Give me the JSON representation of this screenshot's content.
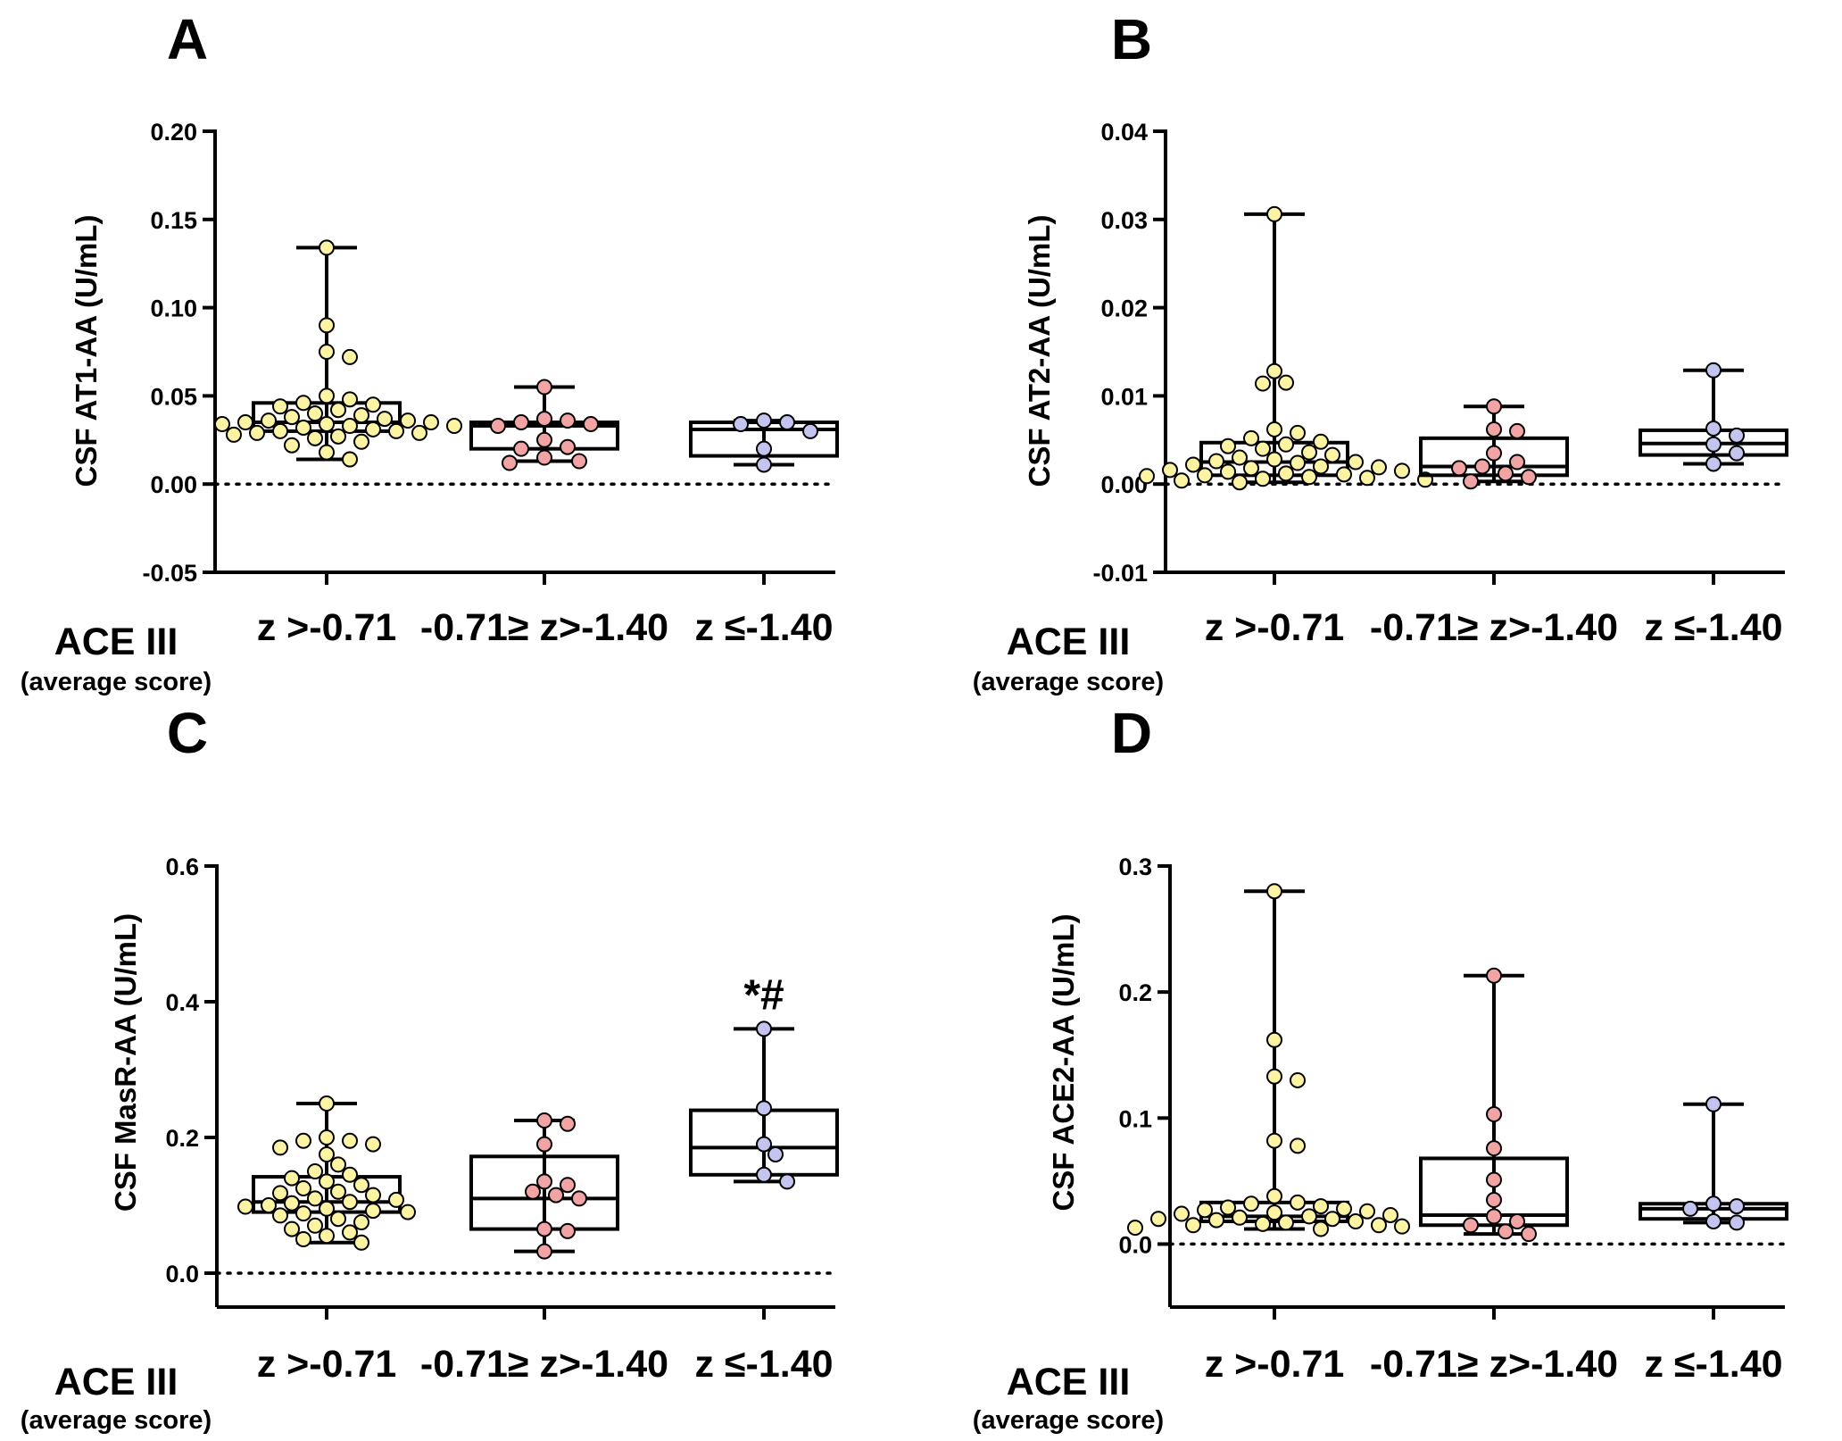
{
  "colors": {
    "group1": "#fdf4a3",
    "group2": "#f2a4a4",
    "group3": "#c4c4f0",
    "stroke": "#000000"
  },
  "chart_data": [
    {
      "type": "box",
      "panel": "A",
      "ylabel": "CSF AT1-AA (U/mL)",
      "ylim": [
        -0.05,
        0.2
      ],
      "yticks": [
        -0.05,
        0.0,
        0.05,
        0.1,
        0.15,
        0.2
      ],
      "ytick_labels": [
        "-0.05",
        "0.00",
        "0.05",
        "0.10",
        "0.15",
        "0.20"
      ],
      "reference_line": 0,
      "categories": [
        "z >-0.71",
        "-0.71≥ z>-1.40",
        "z ≤-1.40"
      ],
      "xlabel": "ACE III",
      "xlabel_sub": "(average score)",
      "series": [
        {
          "name": "z >-0.71",
          "color": "group1",
          "min": 0.014,
          "q1": 0.03,
          "median": 0.035,
          "q3": 0.046,
          "max": 0.134,
          "points": [
            0.134,
            0.09,
            0.075,
            0.072,
            0.05,
            0.048,
            0.046,
            0.045,
            0.044,
            0.042,
            0.04,
            0.039,
            0.038,
            0.037,
            0.036,
            0.036,
            0.035,
            0.035,
            0.034,
            0.034,
            0.033,
            0.033,
            0.032,
            0.031,
            0.03,
            0.03,
            0.029,
            0.029,
            0.028,
            0.027,
            0.026,
            0.024,
            0.022,
            0.018,
            0.014
          ]
        },
        {
          "name": "-0.71≥ z>-1.40",
          "color": "group2",
          "min": 0.013,
          "q1": 0.02,
          "median": 0.033,
          "q3": 0.035,
          "max": 0.055,
          "points": [
            0.055,
            0.037,
            0.036,
            0.035,
            0.034,
            0.033,
            0.025,
            0.021,
            0.02,
            0.015,
            0.013,
            0.012
          ]
        },
        {
          "name": "z ≤-1.40",
          "color": "group3",
          "min": 0.011,
          "q1": 0.016,
          "median": 0.031,
          "q3": 0.035,
          "max": 0.036,
          "points": [
            0.036,
            0.035,
            0.034,
            0.03,
            0.02,
            0.011
          ]
        }
      ]
    },
    {
      "type": "box",
      "panel": "B",
      "ylabel": "CSF AT2-AA (U/mL)",
      "ylim": [
        -0.01,
        0.04
      ],
      "yticks": [
        -0.01,
        0.0,
        0.01,
        0.02,
        0.03,
        0.04
      ],
      "ytick_labels": [
        "-0.01",
        "0.00",
        "0.01",
        "0.02",
        "0.03",
        "0.04"
      ],
      "reference_line": 0,
      "categories": [
        "z >-0.71",
        "-0.71≥ z>-1.40",
        "z ≤-1.40"
      ],
      "xlabel": "ACE III",
      "xlabel_sub": "(average score)",
      "series": [
        {
          "name": "z >-0.71",
          "color": "group1",
          "min": 0.0002,
          "q1": 0.001,
          "median": 0.0025,
          "q3": 0.0047,
          "max": 0.0306,
          "points": [
            0.0306,
            0.0128,
            0.0115,
            0.0114,
            0.0062,
            0.0058,
            0.0052,
            0.0048,
            0.0045,
            0.0043,
            0.004,
            0.0036,
            0.0033,
            0.003,
            0.0028,
            0.0026,
            0.0025,
            0.0024,
            0.0022,
            0.002,
            0.0019,
            0.0018,
            0.0016,
            0.0015,
            0.0014,
            0.0012,
            0.0011,
            0.001,
            0.0009,
            0.0008,
            0.0007,
            0.0006,
            0.0005,
            0.0004,
            0.0002
          ]
        },
        {
          "name": "-0.71≥ z>-1.40",
          "color": "group2",
          "min": 0.0003,
          "q1": 0.001,
          "median": 0.002,
          "q3": 0.0052,
          "max": 0.0088,
          "points": [
            0.0088,
            0.0062,
            0.006,
            0.0035,
            0.0025,
            0.002,
            0.0018,
            0.0012,
            0.0008,
            0.0003
          ]
        },
        {
          "name": "z ≤-1.40",
          "color": "group3",
          "min": 0.0023,
          "q1": 0.0033,
          "median": 0.0046,
          "q3": 0.0061,
          "max": 0.0129,
          "points": [
            0.0129,
            0.0063,
            0.0055,
            0.0045,
            0.0035,
            0.0023
          ]
        }
      ]
    },
    {
      "type": "box",
      "panel": "C",
      "ylabel": "CSF MasR-AA (U/mL)",
      "ylim": [
        -0.05,
        0.6
      ],
      "yticks": [
        0.0,
        0.2,
        0.4,
        0.6
      ],
      "ytick_labels": [
        "0.0",
        "0.2",
        "0.4",
        "0.6"
      ],
      "reference_line": 0,
      "categories": [
        "z >-0.71",
        "-0.71≥ z>-1.40",
        "z ≤-1.40"
      ],
      "xlabel": "ACE III",
      "xlabel_sub": "(average score)",
      "annotation": {
        "category": "z ≤-1.40",
        "text": "*#",
        "y": 0.41
      },
      "series": [
        {
          "name": "z >-0.71",
          "color": "group1",
          "min": 0.045,
          "q1": 0.09,
          "median": 0.105,
          "q3": 0.142,
          "max": 0.25,
          "points": [
            0.25,
            0.2,
            0.195,
            0.195,
            0.19,
            0.185,
            0.175,
            0.16,
            0.15,
            0.145,
            0.14,
            0.135,
            0.13,
            0.125,
            0.12,
            0.118,
            0.115,
            0.11,
            0.108,
            0.105,
            0.103,
            0.1,
            0.098,
            0.095,
            0.092,
            0.09,
            0.088,
            0.085,
            0.08,
            0.075,
            0.07,
            0.065,
            0.06,
            0.055,
            0.05,
            0.045
          ]
        },
        {
          "name": "-0.71≥ z>-1.40",
          "color": "group2",
          "min": 0.032,
          "q1": 0.065,
          "median": 0.11,
          "q3": 0.172,
          "max": 0.225,
          "points": [
            0.225,
            0.22,
            0.19,
            0.135,
            0.13,
            0.12,
            0.115,
            0.11,
            0.065,
            0.062,
            0.032
          ]
        },
        {
          "name": "z ≤-1.40",
          "color": "group3",
          "min": 0.135,
          "q1": 0.145,
          "median": 0.185,
          "q3": 0.24,
          "max": 0.36,
          "points": [
            0.36,
            0.243,
            0.19,
            0.175,
            0.145,
            0.135
          ]
        }
      ]
    },
    {
      "type": "box",
      "panel": "D",
      "ylabel": "CSF ACE2-AA (U/mL)",
      "ylim": [
        -0.05,
        0.3
      ],
      "yticks": [
        0.0,
        0.1,
        0.2,
        0.3
      ],
      "ytick_labels": [
        "0.0",
        "0.1",
        "0.2",
        "0.3"
      ],
      "reference_line": 0,
      "categories": [
        "z >-0.71",
        "-0.71≥ z>-1.40",
        "z ≤-1.40"
      ],
      "xlabel": "ACE III",
      "xlabel_sub": "(average score)",
      "series": [
        {
          "name": "z >-0.71",
          "color": "group1",
          "min": 0.012,
          "q1": 0.018,
          "median": 0.022,
          "q3": 0.033,
          "max": 0.28,
          "points": [
            0.28,
            0.162,
            0.133,
            0.13,
            0.082,
            0.078,
            0.038,
            0.033,
            0.032,
            0.03,
            0.029,
            0.028,
            0.027,
            0.026,
            0.025,
            0.024,
            0.023,
            0.022,
            0.021,
            0.02,
            0.02,
            0.019,
            0.018,
            0.017,
            0.016,
            0.015,
            0.015,
            0.014,
            0.013,
            0.012
          ]
        },
        {
          "name": "-0.71≥ z>-1.40",
          "color": "group2",
          "min": 0.008,
          "q1": 0.015,
          "median": 0.023,
          "q3": 0.068,
          "max": 0.213,
          "points": [
            0.213,
            0.103,
            0.076,
            0.051,
            0.035,
            0.022,
            0.018,
            0.015,
            0.01,
            0.008
          ]
        },
        {
          "name": "z ≤-1.40",
          "color": "group3",
          "min": 0.017,
          "q1": 0.02,
          "median": 0.028,
          "q3": 0.032,
          "max": 0.111,
          "points": [
            0.111,
            0.032,
            0.03,
            0.028,
            0.018,
            0.017
          ]
        }
      ]
    }
  ]
}
